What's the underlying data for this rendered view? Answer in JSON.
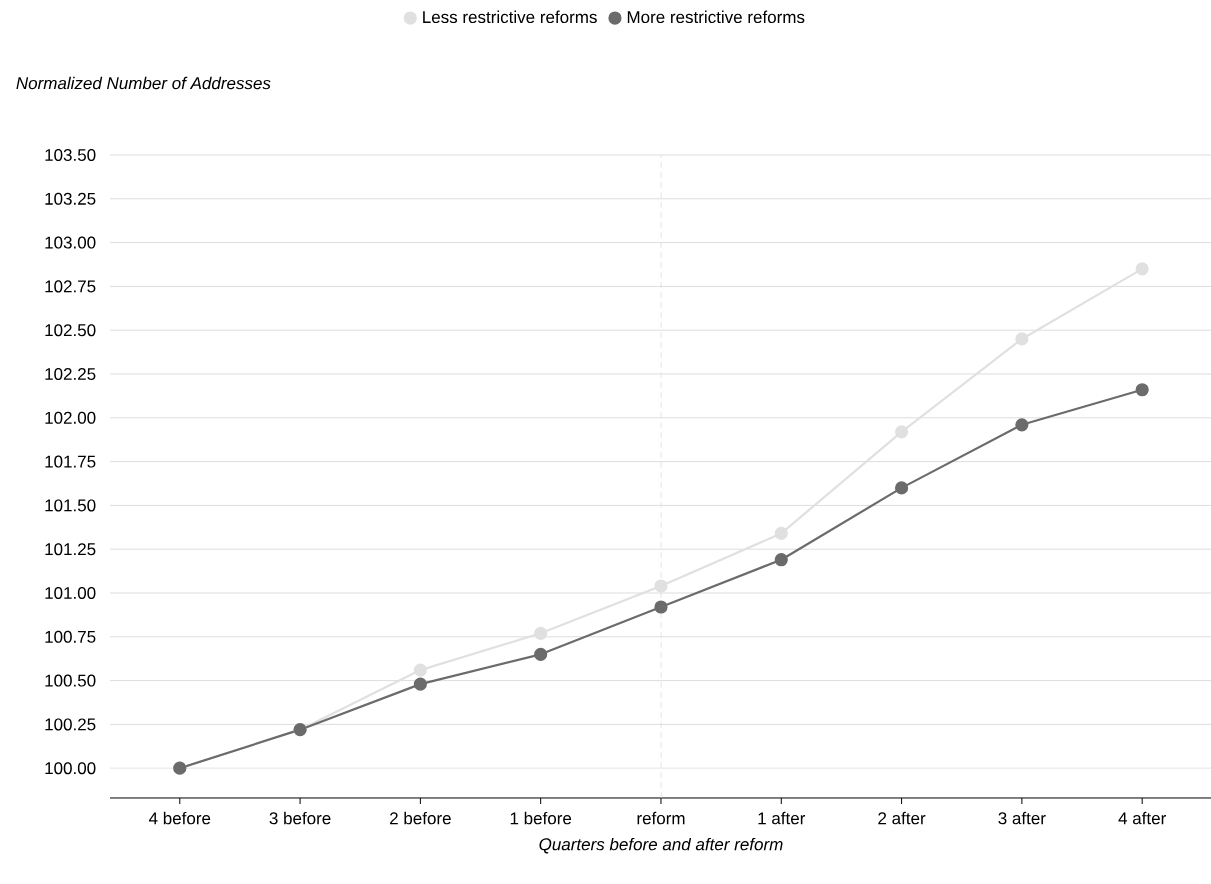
{
  "chart_data": {
    "type": "line",
    "ylabel": "Normalized Number of Addresses",
    "xlabel": "Quarters before and after reform",
    "categories": [
      "4 before",
      "3 before",
      "2 before",
      "1 before",
      "reform",
      "1 after",
      "2 after",
      "3 after",
      "4 after"
    ],
    "series": [
      {
        "name": "Less restrictive reforms",
        "color": "#e0e0e0",
        "values": [
          100.0,
          100.22,
          100.56,
          100.77,
          101.04,
          101.34,
          101.92,
          102.45,
          102.85
        ]
      },
      {
        "name": "More restrictive reforms",
        "color": "#6b6b6b",
        "values": [
          100.0,
          100.22,
          100.48,
          100.65,
          100.92,
          101.19,
          101.6,
          101.96,
          102.16
        ]
      }
    ],
    "ylim": [
      99.83,
      103.5
    ],
    "yticks": [
      {
        "value": 100,
        "label": "100.00"
      },
      {
        "value": 100.25,
        "label": "100.25"
      },
      {
        "value": 100.5,
        "label": "100.50"
      },
      {
        "value": 100.75,
        "label": "100.75"
      },
      {
        "value": 101,
        "label": "101.00"
      },
      {
        "value": 101.25,
        "label": "101.25"
      },
      {
        "value": 101.5,
        "label": "101.50"
      },
      {
        "value": 101.75,
        "label": "101.75"
      },
      {
        "value": 102,
        "label": "102.00"
      },
      {
        "value": 102.25,
        "label": "102.25"
      },
      {
        "value": 102.5,
        "label": "102.50"
      },
      {
        "value": 102.75,
        "label": "102.75"
      },
      {
        "value": 103,
        "label": "103.00"
      },
      {
        "value": 103.25,
        "label": "103.25"
      },
      {
        "value": 103.5,
        "label": "103.50"
      }
    ],
    "ref_lines": [
      {
        "axis": "x",
        "value": "reform",
        "color": "#dddddd",
        "line_style": "dashed"
      }
    ],
    "grid": "y",
    "legend": "top",
    "marker": "circle",
    "line_style": "solid"
  }
}
